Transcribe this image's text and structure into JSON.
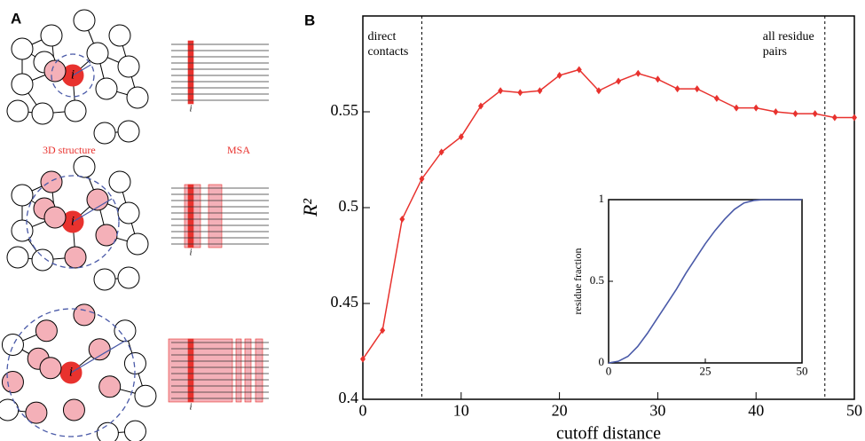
{
  "panel_a": {
    "label": "A",
    "left_caption": "3D structure",
    "right_caption": "MSA",
    "residue_label": "i"
  },
  "chart_data": [
    {
      "type": "line",
      "label": "B",
      "xlabel": "cutoff distance",
      "ylabel": "R²",
      "color": "#e8322e",
      "x": [
        0,
        2,
        4,
        6,
        8,
        10,
        12,
        14,
        16,
        18,
        20,
        22,
        24,
        26,
        28,
        30,
        32,
        34,
        36,
        38,
        40,
        42,
        44,
        46,
        48,
        50
      ],
      "values": [
        0.421,
        0.436,
        0.494,
        0.515,
        0.529,
        0.537,
        0.553,
        0.561,
        0.56,
        0.561,
        0.569,
        0.572,
        0.561,
        0.566,
        0.57,
        0.567,
        0.562,
        0.562,
        0.557,
        0.552,
        0.552,
        0.55,
        0.549,
        0.549,
        0.547,
        0.547
      ],
      "xlim": [
        0,
        50
      ],
      "xticks": [
        0,
        10,
        20,
        30,
        40,
        50
      ],
      "ylim": [
        0.4,
        0.6
      ],
      "yticks": [
        0.4,
        0.45,
        0.5,
        0.55
      ],
      "annotations": [
        {
          "x": 6,
          "lines": [
            "direct",
            "contacts"
          ]
        },
        {
          "x": 47,
          "lines": [
            "all residue",
            "pairs"
          ]
        }
      ]
    },
    {
      "type": "line",
      "ylabel": "residue fraction",
      "color": "#4a5aa8",
      "x": [
        0,
        2.5,
        5,
        7.5,
        10,
        12.5,
        15,
        17.5,
        20,
        22.5,
        25,
        27.5,
        30,
        32.5,
        35,
        37.5,
        40,
        42.5,
        45,
        47.5,
        50
      ],
      "values": [
        0,
        0.01,
        0.04,
        0.1,
        0.18,
        0.27,
        0.36,
        0.45,
        0.55,
        0.64,
        0.73,
        0.81,
        0.88,
        0.94,
        0.98,
        0.995,
        1,
        1,
        1,
        1,
        1
      ],
      "xlim": [
        0,
        50
      ],
      "xticks": [
        0,
        25,
        50
      ],
      "ylim": [
        0,
        1
      ],
      "yticks": [
        0,
        {
          "value": 0.5,
          "label": "0.5"
        },
        1
      ]
    }
  ]
}
